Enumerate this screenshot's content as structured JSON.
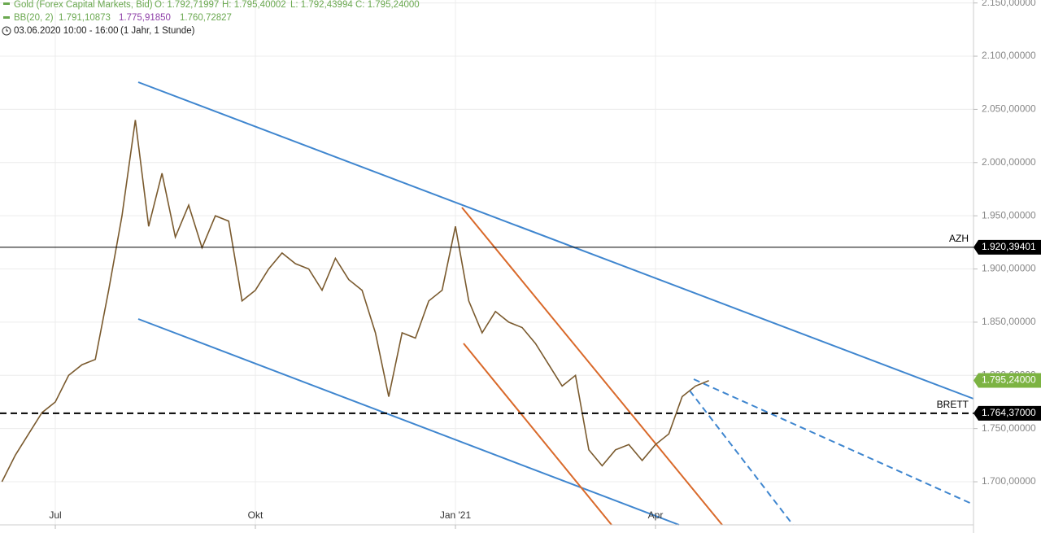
{
  "header": {
    "instrument": "Gold (Forex Capital Markets, Bid)",
    "ohlc": [
      "O: 1.792,71997",
      "H: 1.795,40002",
      "L: 1.792,43994",
      "C: 1.795,24000"
    ],
    "indicator": "BB(20, 2)",
    "indicator_values": [
      "1.791,10873",
      "1.775,91850",
      "1.760,72827"
    ],
    "period": "03.06.2020 10:00 - 16:00",
    "range": "(1 Jahr, 1 Stunde)"
  },
  "chart_data": {
    "type": "line",
    "color": "#7a5a2e",
    "categories": [
      null,
      null,
      null,
      null,
      "Jul",
      null,
      null,
      null,
      null,
      null,
      null,
      null,
      null,
      null,
      null,
      null,
      null,
      null,
      null,
      "Okt",
      null,
      null,
      null,
      null,
      null,
      null,
      null,
      null,
      null,
      null,
      null,
      null,
      null,
      null,
      "Jan '21",
      null,
      null,
      null,
      null,
      null,
      null,
      null,
      null,
      null,
      null,
      null,
      null,
      null,
      null,
      "Apr",
      null,
      null,
      null,
      null
    ],
    "values": [
      1700,
      1725,
      1745,
      1765,
      1775,
      1800,
      1810,
      1815,
      1880,
      1950,
      2040,
      1940,
      1990,
      1930,
      1960,
      1920,
      1950,
      1945,
      1870,
      1880,
      1900,
      1915,
      1905,
      1900,
      1880,
      1910,
      1890,
      1880,
      1840,
      1780,
      1840,
      1835,
      1870,
      1880,
      1940,
      1870,
      1840,
      1860,
      1850,
      1845,
      1830,
      1810,
      1790,
      1800,
      1730,
      1715,
      1730,
      1735,
      1720,
      1735,
      1745,
      1780,
      1790,
      1795
    ],
    "ylim": [
      1659.5,
      2152.8
    ],
    "yticks": [
      {
        "value": 2150,
        "label": "2.150,00000"
      },
      {
        "value": 2100,
        "label": "2.100,00000"
      },
      {
        "value": 2050,
        "label": "2.050,00000"
      },
      {
        "value": 2000,
        "label": "2.000,00000"
      },
      {
        "value": 1950,
        "label": "1.950,00000"
      },
      {
        "value": 1900,
        "label": "1.900,00000"
      },
      {
        "value": 1850,
        "label": "1.850,00000"
      },
      {
        "value": 1800,
        "label": "1.800,00000"
      },
      {
        "value": 1750,
        "label": "1.750,00000"
      },
      {
        "value": 1700,
        "label": "1.700,00000"
      }
    ],
    "grid": true,
    "last_price": 1795.24,
    "last_price_label": "1.795,24000",
    "levels": [
      {
        "name": "AZH",
        "value": 1920.39401,
        "value_label": "1.920,39401",
        "style": "solid"
      },
      {
        "name": "BRETT",
        "value": 1764.37,
        "value_label": "1.764,37000",
        "style": "dashed"
      }
    ]
  }
}
